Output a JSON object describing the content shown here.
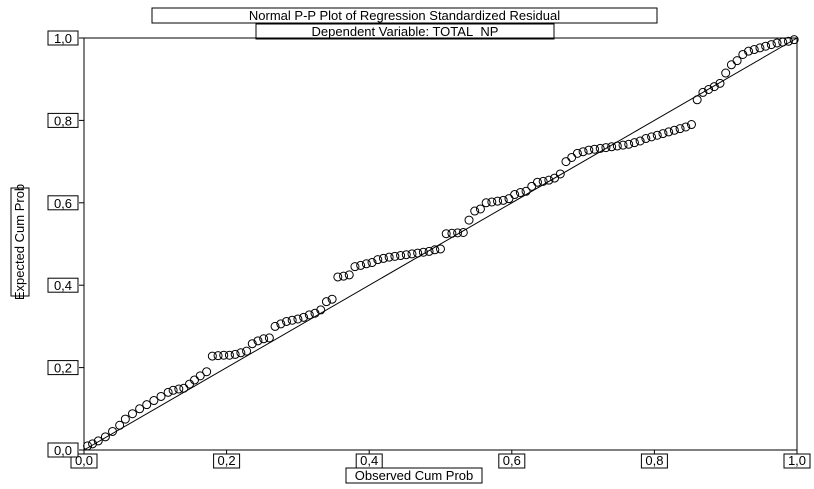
{
  "chart_data": {
    "type": "scatter",
    "title": "Normal P-P Plot of Regression Standardized Residual",
    "subtitle": "Dependent Variable: TOTAL_NP",
    "xlabel": "Observed Cum Prob",
    "ylabel": "Expected Cum Prob",
    "xlim": [
      0,
      1
    ],
    "ylim": [
      0,
      1
    ],
    "xticks": [
      "0,0",
      "0,2",
      "0,4",
      "0,6",
      "0,8",
      "1,0"
    ],
    "yticks": [
      "0,0",
      "0,2",
      "0,4",
      "0,6",
      "0,8",
      "1,0"
    ],
    "grid": false,
    "reference_line": {
      "from": [
        0,
        0
      ],
      "to": [
        1,
        1
      ]
    },
    "x": [
      0.005,
      0.012,
      0.02,
      0.03,
      0.04,
      0.05,
      0.058,
      0.068,
      0.078,
      0.088,
      0.098,
      0.108,
      0.118,
      0.125,
      0.133,
      0.14,
      0.148,
      0.155,
      0.163,
      0.172,
      0.18,
      0.188,
      0.196,
      0.204,
      0.212,
      0.22,
      0.228,
      0.236,
      0.244,
      0.252,
      0.26,
      0.268,
      0.276,
      0.284,
      0.292,
      0.3,
      0.308,
      0.316,
      0.324,
      0.332,
      0.34,
      0.348,
      0.356,
      0.364,
      0.372,
      0.38,
      0.388,
      0.396,
      0.404,
      0.412,
      0.42,
      0.428,
      0.436,
      0.444,
      0.452,
      0.46,
      0.468,
      0.476,
      0.484,
      0.492,
      0.5,
      0.508,
      0.516,
      0.524,
      0.532,
      0.54,
      0.548,
      0.556,
      0.564,
      0.572,
      0.58,
      0.588,
      0.596,
      0.604,
      0.612,
      0.62,
      0.628,
      0.636,
      0.644,
      0.652,
      0.66,
      0.668,
      0.676,
      0.684,
      0.692,
      0.7,
      0.708,
      0.716,
      0.724,
      0.732,
      0.74,
      0.748,
      0.756,
      0.764,
      0.772,
      0.78,
      0.788,
      0.796,
      0.804,
      0.812,
      0.82,
      0.828,
      0.836,
      0.844,
      0.852,
      0.86,
      0.868,
      0.876,
      0.884,
      0.892,
      0.9,
      0.908,
      0.916,
      0.924,
      0.932,
      0.94,
      0.948,
      0.956,
      0.964,
      0.972,
      0.98,
      0.988,
      0.996
    ],
    "y": [
      0.01,
      0.015,
      0.022,
      0.032,
      0.045,
      0.06,
      0.075,
      0.088,
      0.1,
      0.11,
      0.12,
      0.13,
      0.14,
      0.145,
      0.148,
      0.15,
      0.16,
      0.17,
      0.18,
      0.19,
      0.228,
      0.229,
      0.23,
      0.23,
      0.232,
      0.236,
      0.24,
      0.258,
      0.265,
      0.27,
      0.272,
      0.3,
      0.306,
      0.312,
      0.315,
      0.318,
      0.322,
      0.328,
      0.332,
      0.34,
      0.36,
      0.366,
      0.42,
      0.422,
      0.425,
      0.445,
      0.448,
      0.452,
      0.455,
      0.462,
      0.465,
      0.468,
      0.47,
      0.472,
      0.474,
      0.476,
      0.478,
      0.48,
      0.482,
      0.486,
      0.488,
      0.525,
      0.526,
      0.527,
      0.528,
      0.558,
      0.58,
      0.585,
      0.6,
      0.602,
      0.604,
      0.606,
      0.61,
      0.62,
      0.625,
      0.628,
      0.64,
      0.65,
      0.652,
      0.655,
      0.66,
      0.67,
      0.7,
      0.71,
      0.72,
      0.724,
      0.728,
      0.73,
      0.732,
      0.734,
      0.736,
      0.738,
      0.74,
      0.742,
      0.746,
      0.75,
      0.756,
      0.76,
      0.764,
      0.768,
      0.772,
      0.776,
      0.78,
      0.784,
      0.79,
      0.85,
      0.868,
      0.875,
      0.882,
      0.89,
      0.915,
      0.935,
      0.945,
      0.96,
      0.968,
      0.972,
      0.976,
      0.98,
      0.984,
      0.988,
      0.99,
      0.992,
      0.996
    ]
  }
}
